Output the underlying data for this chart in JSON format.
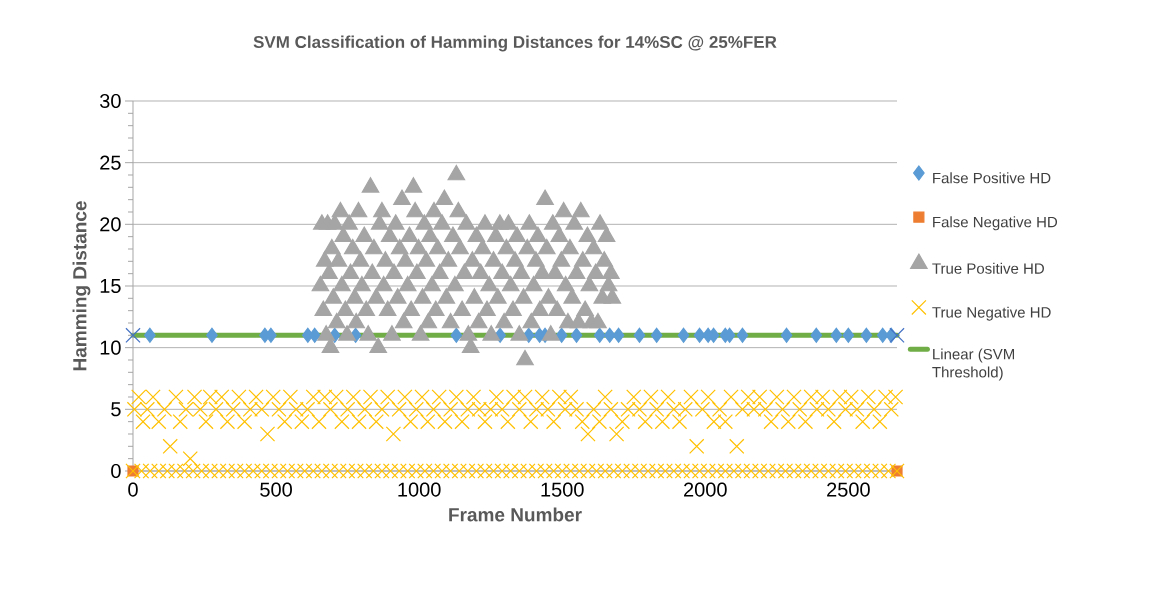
{
  "chart_data": {
    "type": "scatter",
    "title": "SVM Classification of Hamming Distances for 14%SC @ 25%FER",
    "xlabel": "Frame Number",
    "ylabel": "Hamming Distance",
    "xlim": [
      0,
      2670
    ],
    "ylim": [
      0,
      30
    ],
    "xticks": [
      0,
      500,
      1000,
      1500,
      2000,
      2500
    ],
    "yticks": [
      0,
      5,
      10,
      15,
      20,
      25,
      30
    ],
    "grid": "y",
    "legend": "right",
    "series": [
      {
        "name": "False Positive HD",
        "color": "#5b9bd5",
        "marker": "diamond",
        "x": [
          59,
          276,
          461,
          482,
          611,
          635,
          705,
          778,
          1130,
          1283,
          1383,
          1421,
          1440,
          1498,
          1550,
          1631,
          1666,
          1697,
          1770,
          1830,
          1924,
          1980,
          2010,
          2029,
          2070,
          2085,
          2130,
          2284,
          2388,
          2458,
          2500,
          2563,
          2620,
          2650
        ],
        "values": [
          11,
          11,
          11,
          11,
          11,
          11,
          11,
          11,
          11,
          11,
          11,
          11,
          11,
          11,
          11,
          11,
          11,
          11,
          11,
          11,
          11,
          11,
          11,
          11,
          11,
          11,
          11,
          11,
          11,
          11,
          11,
          11,
          11,
          11
        ]
      },
      {
        "name": "False Negative HD",
        "color": "#ed7d31",
        "marker": "square",
        "x": [
          0,
          2670
        ],
        "values": [
          0,
          0
        ]
      },
      {
        "name": "True Positive HD",
        "color": "#a5a5a5",
        "marker": "triangle",
        "x": [
          655,
          660,
          665,
          670,
          675,
          680,
          685,
          690,
          695,
          700,
          705,
          712,
          718,
          725,
          730,
          735,
          742,
          748,
          755,
          760,
          768,
          775,
          780,
          788,
          795,
          800,
          808,
          815,
          822,
          830,
          836,
          842,
          850,
          857,
          862,
          870,
          876,
          882,
          890,
          897,
          905,
          912,
          918,
          925,
          932,
          940,
          946,
          952,
          960,
          966,
          972,
          980,
          986,
          992,
          998,
          1005,
          1012,
          1018,
          1025,
          1032,
          1038,
          1045,
          1052,
          1058,
          1065,
          1072,
          1080,
          1088,
          1095,
          1102,
          1110,
          1118,
          1125,
          1130,
          1137,
          1143,
          1150,
          1158,
          1165,
          1172,
          1180,
          1186,
          1193,
          1200,
          1208,
          1215,
          1222,
          1230,
          1237,
          1245,
          1252,
          1260,
          1268,
          1275,
          1282,
          1290,
          1297,
          1305,
          1312,
          1320,
          1328,
          1335,
          1342,
          1350,
          1357,
          1365,
          1370,
          1378,
          1385,
          1392,
          1400,
          1408,
          1415,
          1422,
          1430,
          1440,
          1446,
          1452,
          1460,
          1467,
          1475,
          1482,
          1490,
          1497,
          1505,
          1512,
          1520,
          1527,
          1535,
          1542,
          1550,
          1557,
          1565,
          1572,
          1580,
          1588,
          1595,
          1602,
          1610,
          1617,
          1625,
          1632,
          1640,
          1647,
          1655,
          1662,
          1670,
          1675
        ],
        "values": [
          15,
          20,
          13,
          17,
          11,
          20,
          16,
          10,
          18,
          14,
          20,
          12,
          17,
          21,
          15,
          19,
          13,
          11,
          20,
          16,
          18,
          14,
          12,
          21,
          17,
          15,
          19,
          13,
          11,
          23,
          16,
          18,
          14,
          10,
          20,
          21,
          15,
          17,
          13,
          19,
          11,
          16,
          20,
          14,
          18,
          22,
          12,
          17,
          15,
          19,
          13,
          23,
          21,
          16,
          18,
          11,
          14,
          20,
          17,
          12,
          19,
          15,
          21,
          13,
          18,
          16,
          20,
          22,
          14,
          17,
          12,
          19,
          15,
          24,
          21,
          18,
          13,
          16,
          20,
          11,
          10,
          17,
          14,
          19,
          12,
          16,
          18,
          20,
          13,
          15,
          11,
          17,
          19,
          14,
          20,
          16,
          12,
          18,
          20,
          15,
          13,
          17,
          19,
          11,
          16,
          14,
          9,
          18,
          20,
          12,
          15,
          17,
          19,
          13,
          16,
          22,
          18,
          14,
          11,
          20,
          16,
          13,
          19,
          17,
          21,
          15,
          12,
          18,
          14,
          20,
          16,
          12,
          21,
          17,
          13,
          19,
          15,
          12,
          18,
          16,
          12,
          20,
          14,
          17,
          19,
          15,
          16,
          14
        ]
      },
      {
        "name": "True Negative HD",
        "color": "#ffc000",
        "marker": "cross",
        "x": [
          5,
          20,
          35,
          50,
          70,
          90,
          110,
          130,
          150,
          165,
          185,
          200,
          215,
          235,
          255,
          270,
          290,
          310,
          330,
          350,
          370,
          390,
          410,
          430,
          450,
          470,
          490,
          510,
          530,
          550,
          570,
          590,
          610,
          630,
          650,
          670,
          690,
          710,
          730,
          750,
          770,
          790,
          810,
          830,
          850,
          870,
          890,
          910,
          930,
          950,
          970,
          990,
          1010,
          1030,
          1050,
          1070,
          1090,
          1110,
          1130,
          1150,
          1170,
          1190,
          1210,
          1230,
          1250,
          1270,
          1290,
          1310,
          1330,
          1350,
          1370,
          1390,
          1410,
          1430,
          1450,
          1470,
          1490,
          1510,
          1530,
          1550,
          1570,
          1590,
          1610,
          1630,
          1650,
          1670,
          1690,
          1710,
          1730,
          1750,
          1770,
          1790,
          1810,
          1830,
          1850,
          1870,
          1890,
          1910,
          1930,
          1950,
          1970,
          1990,
          2010,
          2030,
          2050,
          2070,
          2090,
          2110,
          2130,
          2150,
          2170,
          2190,
          2210,
          2230,
          2250,
          2270,
          2290,
          2310,
          2330,
          2350,
          2370,
          2390,
          2410,
          2430,
          2450,
          2470,
          2490,
          2510,
          2530,
          2550,
          2570,
          2590,
          2610,
          2630,
          2650,
          2665,
          0,
          30,
          60,
          90,
          120,
          150,
          180,
          210,
          240,
          270,
          300,
          330,
          360,
          390,
          420,
          450,
          480,
          510,
          540,
          570,
          600,
          630,
          660,
          690,
          720,
          750,
          780,
          810,
          840,
          870,
          900,
          930,
          960,
          990,
          1020,
          1050,
          1080,
          1110,
          1140,
          1170,
          1200,
          1230,
          1260,
          1290,
          1320,
          1350,
          1380,
          1410,
          1440,
          1470,
          1500,
          1530,
          1560,
          1590,
          1620,
          1650,
          1680,
          1710,
          1740,
          1770,
          1800,
          1830,
          1860,
          1890,
          1920,
          1950,
          1980,
          2010,
          2040,
          2070,
          2100,
          2130,
          2160,
          2190,
          2220,
          2250,
          2280,
          2310,
          2340,
          2370,
          2400,
          2430,
          2460,
          2490,
          2520,
          2550,
          2580,
          2610,
          2640,
          2670
        ],
        "values": [
          5,
          6,
          4,
          5,
          6,
          4,
          5,
          2,
          6,
          4,
          5,
          1,
          6,
          5,
          4,
          6,
          5,
          6,
          4,
          5,
          6,
          4,
          5,
          6,
          5,
          3,
          6,
          5,
          4,
          6,
          5,
          4,
          5,
          6,
          4,
          6,
          5,
          6,
          4,
          5,
          6,
          4,
          5,
          6,
          4,
          5,
          6,
          3,
          5,
          6,
          4,
          5,
          6,
          4,
          5,
          6,
          4,
          5,
          6,
          4,
          5,
          6,
          5,
          4,
          5,
          6,
          5,
          4,
          6,
          5,
          6,
          4,
          5,
          6,
          5,
          4,
          6,
          5,
          6,
          5,
          4,
          3,
          5,
          4,
          6,
          5,
          3,
          4,
          5,
          6,
          5,
          4,
          6,
          5,
          4,
          6,
          5,
          4,
          5,
          6,
          2,
          5,
          6,
          4,
          5,
          4,
          6,
          2,
          5,
          6,
          5,
          6,
          5,
          4,
          6,
          5,
          4,
          6,
          5,
          4,
          6,
          5,
          6,
          5,
          4,
          6,
          5,
          6,
          5,
          4,
          6,
          5,
          4,
          6,
          5,
          6,
          0,
          0,
          0,
          0,
          0,
          0,
          0,
          0,
          0,
          0,
          0,
          0,
          0,
          0,
          0,
          0,
          0,
          0,
          0,
          0,
          0,
          0,
          0,
          0,
          0,
          0,
          0,
          0,
          0,
          0,
          0,
          0,
          0,
          0,
          0,
          0,
          0,
          0,
          0,
          0,
          0,
          0,
          0,
          0,
          0,
          0,
          0,
          0,
          0,
          0,
          0,
          0,
          0,
          0,
          0,
          0,
          0,
          0,
          0,
          0,
          0,
          0,
          0,
          0,
          0,
          0,
          0,
          0,
          0,
          0,
          0,
          0,
          0,
          0,
          0,
          0,
          0,
          0,
          0,
          0,
          0,
          0,
          0,
          0,
          0,
          0,
          0,
          0,
          0,
          0
        ]
      },
      {
        "name": "Linear (SVM Threshold)",
        "type": "line",
        "color": "#70ad47",
        "marker": "none",
        "line_style": "solid",
        "x": [
          0,
          2670
        ],
        "values": [
          11,
          11
        ]
      },
      {
        "color": "#4472c4",
        "marker": "cross",
        "x": [
          0,
          2670
        ],
        "values": [
          11,
          11
        ]
      }
    ]
  }
}
